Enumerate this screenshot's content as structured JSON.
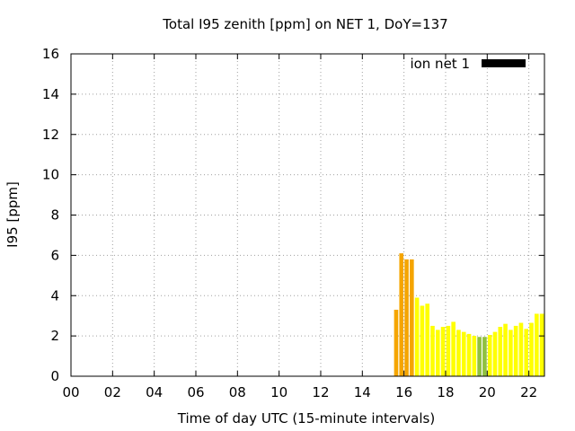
{
  "chart_data": {
    "type": "bar",
    "title": "Total I95 zenith [ppm] on NET 1, DoY=137",
    "xlabel": "Time of day UTC (15-minute intervals)",
    "ylabel": "I95 [ppm]",
    "xlim": [
      0,
      22.75
    ],
    "ylim": [
      0,
      16
    ],
    "x_ticks": [
      {
        "value": 0,
        "label": "00"
      },
      {
        "value": 2,
        "label": "02"
      },
      {
        "value": 4,
        "label": "04"
      },
      {
        "value": 6,
        "label": "06"
      },
      {
        "value": 8,
        "label": "08"
      },
      {
        "value": 10,
        "label": "10"
      },
      {
        "value": 12,
        "label": "12"
      },
      {
        "value": 14,
        "label": "14"
      },
      {
        "value": 16,
        "label": "16"
      },
      {
        "value": 18,
        "label": "18"
      },
      {
        "value": 20,
        "label": "20"
      },
      {
        "value": 22,
        "label": "22"
      }
    ],
    "y_ticks": [
      {
        "value": 0,
        "label": "0"
      },
      {
        "value": 2,
        "label": "2"
      },
      {
        "value": 4,
        "label": "4"
      },
      {
        "value": 6,
        "label": "6"
      },
      {
        "value": 8,
        "label": "8"
      },
      {
        "value": 10,
        "label": "10"
      },
      {
        "value": 12,
        "label": "12"
      },
      {
        "value": 14,
        "label": "14"
      },
      {
        "value": 16,
        "label": "16"
      }
    ],
    "grid": true,
    "legend": {
      "placement": "top-right",
      "label": "ion net 1",
      "color": "#000000"
    },
    "colors": {
      "low": "#ffff00",
      "mid": "#e8e800",
      "high": "#f5a500",
      "green": "#90c040"
    },
    "series": [
      {
        "name": "ion net 1",
        "bars": [
          {
            "x": 15.5,
            "value": 3.3,
            "color": "#f5a500"
          },
          {
            "x": 15.75,
            "value": 6.1,
            "color": "#f5a500"
          },
          {
            "x": 16.0,
            "value": 5.8,
            "color": "#f5a500"
          },
          {
            "x": 16.25,
            "value": 5.8,
            "color": "#f5a500"
          },
          {
            "x": 16.5,
            "value": 3.9,
            "color": "#ffff00"
          },
          {
            "x": 16.75,
            "value": 3.5,
            "color": "#ffff00"
          },
          {
            "x": 17.0,
            "value": 3.6,
            "color": "#ffff00"
          },
          {
            "x": 17.25,
            "value": 2.5,
            "color": "#ffff00"
          },
          {
            "x": 17.5,
            "value": 2.3,
            "color": "#ffff00"
          },
          {
            "x": 17.75,
            "value": 2.45,
            "color": "#ffff00"
          },
          {
            "x": 18.0,
            "value": 2.5,
            "color": "#ffff00"
          },
          {
            "x": 18.25,
            "value": 2.7,
            "color": "#ffff00"
          },
          {
            "x": 18.5,
            "value": 2.3,
            "color": "#ffff00"
          },
          {
            "x": 18.75,
            "value": 2.2,
            "color": "#ffff00"
          },
          {
            "x": 19.0,
            "value": 2.1,
            "color": "#ffff00"
          },
          {
            "x": 19.25,
            "value": 2.0,
            "color": "#ffff00"
          },
          {
            "x": 19.5,
            "value": 1.95,
            "color": "#90c040"
          },
          {
            "x": 19.75,
            "value": 1.95,
            "color": "#90c040"
          },
          {
            "x": 20.0,
            "value": 2.05,
            "color": "#ffff00"
          },
          {
            "x": 20.25,
            "value": 2.2,
            "color": "#ffff00"
          },
          {
            "x": 20.5,
            "value": 2.45,
            "color": "#ffff00"
          },
          {
            "x": 20.75,
            "value": 2.6,
            "color": "#ffff00"
          },
          {
            "x": 21.0,
            "value": 2.3,
            "color": "#ffff00"
          },
          {
            "x": 21.25,
            "value": 2.5,
            "color": "#ffff00"
          },
          {
            "x": 21.5,
            "value": 2.65,
            "color": "#ffff00"
          },
          {
            "x": 21.75,
            "value": 2.35,
            "color": "#ffff00"
          },
          {
            "x": 22.0,
            "value": 2.65,
            "color": "#ffff00"
          },
          {
            "x": 22.25,
            "value": 3.1,
            "color": "#ffff00"
          },
          {
            "x": 22.5,
            "value": 3.1,
            "color": "#ffff00"
          }
        ]
      }
    ]
  }
}
